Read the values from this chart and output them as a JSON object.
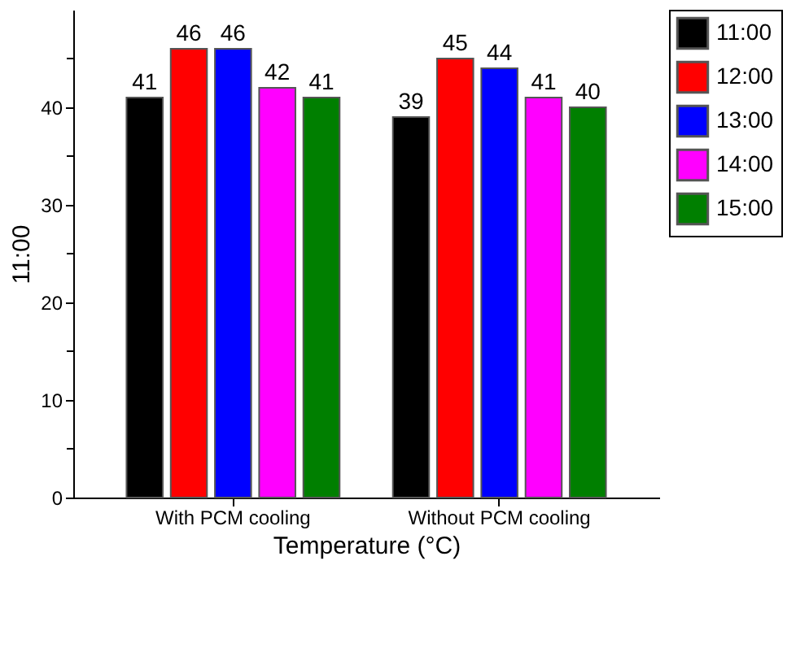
{
  "chart_data": {
    "type": "bar",
    "xlabel": "Temperature (°C)",
    "ylabel": "11:00",
    "categories": [
      "With PCM cooling",
      "Without PCM cooling"
    ],
    "series": [
      {
        "name": "11:00",
        "color": "#000000",
        "values": [
          41,
          39
        ]
      },
      {
        "name": "12:00",
        "color": "#ff0000",
        "values": [
          46,
          45
        ]
      },
      {
        "name": "13:00",
        "color": "#0000ff",
        "values": [
          46,
          44
        ]
      },
      {
        "name": "14:00",
        "color": "#ff00ff",
        "values": [
          42,
          41
        ]
      },
      {
        "name": "15:00",
        "color": "#007f00",
        "values": [
          41,
          40
        ]
      }
    ],
    "ylim": [
      0,
      50
    ],
    "yticks": [
      0,
      {
        "value": 5,
        "label": null
      },
      10,
      {
        "value": 15,
        "label": null
      },
      20,
      {
        "value": 25,
        "label": null
      },
      30,
      {
        "value": 35,
        "label": null
      },
      40,
      {
        "value": 45,
        "label": null
      }
    ],
    "data_labels": true,
    "grid": false,
    "legend": "top right"
  }
}
